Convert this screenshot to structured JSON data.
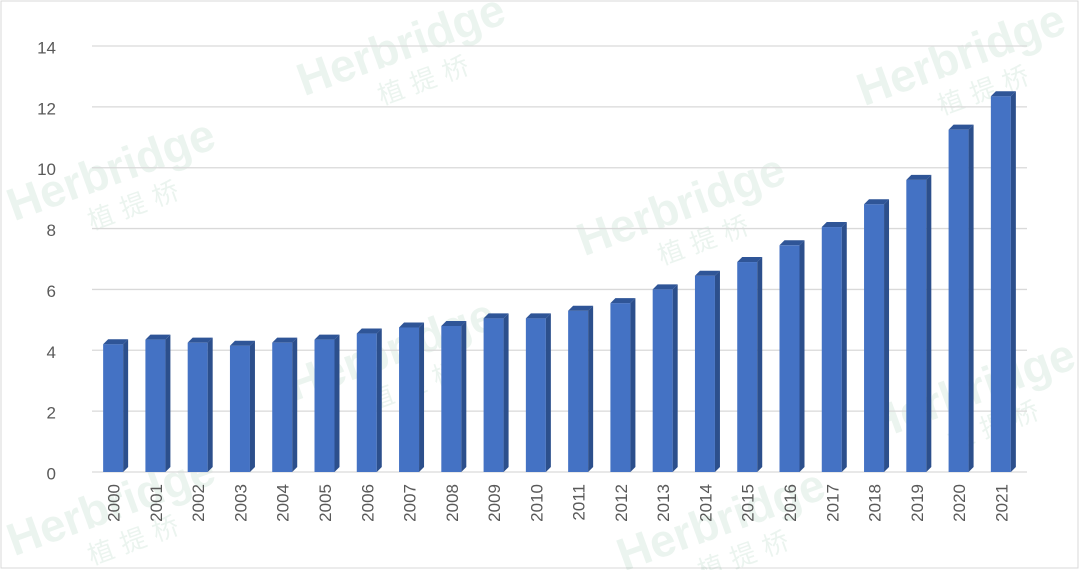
{
  "chart_data": {
    "type": "bar",
    "categories": [
      "2000",
      "2001",
      "2002",
      "2003",
      "2004",
      "2005",
      "2006",
      "2007",
      "2008",
      "2009",
      "2010",
      "2011",
      "2012",
      "2013",
      "2014",
      "2015",
      "2016",
      "2017",
      "2018",
      "2019",
      "2020",
      "2021"
    ],
    "values": [
      4.2,
      4.35,
      4.25,
      4.15,
      4.25,
      4.35,
      4.55,
      4.75,
      4.8,
      5.05,
      5.05,
      5.3,
      5.55,
      6.0,
      6.45,
      6.9,
      7.45,
      8.05,
      8.8,
      9.6,
      11.25,
      12.35
    ],
    "color": "#4472c4",
    "ylim": [
      0,
      14
    ],
    "yticks": [
      0,
      2,
      4,
      6,
      8,
      10,
      12,
      14
    ],
    "grid": true,
    "watermark": [
      "Herbridge",
      "植 提 桥"
    ]
  }
}
